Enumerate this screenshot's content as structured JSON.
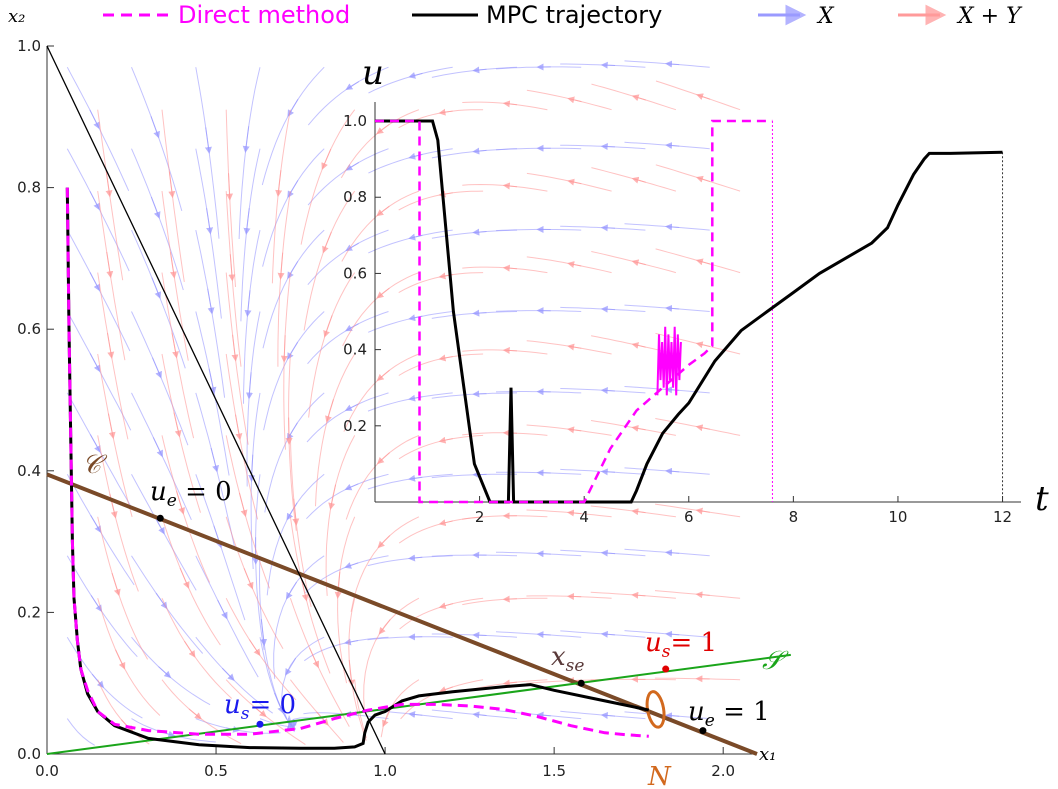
{
  "chart_data": [
    {
      "type": "line",
      "xlabel": "x₁",
      "ylabel": "x₂",
      "xlim": [
        0,
        2.1
      ],
      "ylim": [
        0,
        1.0
      ],
      "xticks": [
        "0.0",
        "0.5",
        "1.0",
        "1.5",
        "2.0"
      ],
      "yticks": [
        "0.0",
        "0.2",
        "0.4",
        "0.6",
        "0.8",
        "1.0"
      ],
      "legend": {
        "placement": "top",
        "entries": [
          {
            "label": "Direct method",
            "color": "#ff00ff",
            "style": "dashed"
          },
          {
            "label": "MPC trajectory",
            "color": "#000000",
            "style": "solid"
          },
          {
            "label": "X",
            "color": "#8f8fff",
            "style": "arrow"
          },
          {
            "label": "X + Y",
            "color": "#ff9f9f",
            "style": "arrow"
          }
        ]
      },
      "series": [
        {
          "name": "MPC trajectory",
          "color": "#000000",
          "x": [
            0.06,
            0.065,
            0.07,
            0.075,
            0.08,
            0.09,
            0.1,
            0.12,
            0.15,
            0.2,
            0.3,
            0.45,
            0.6,
            0.75,
            0.85,
            0.91,
            0.935,
            0.94,
            0.95,
            0.97,
            1.0,
            1.05,
            1.1,
            1.2,
            1.35,
            1.43,
            1.5,
            1.6,
            1.7,
            1.78
          ],
          "y": [
            0.8,
            0.6,
            0.45,
            0.3,
            0.22,
            0.16,
            0.12,
            0.085,
            0.06,
            0.04,
            0.022,
            0.013,
            0.009,
            0.008,
            0.008,
            0.01,
            0.015,
            0.03,
            0.045,
            0.055,
            0.06,
            0.075,
            0.082,
            0.088,
            0.095,
            0.098,
            0.09,
            0.08,
            0.07,
            0.062
          ]
        },
        {
          "name": "Direct method",
          "color": "#ff00ff",
          "x": [
            0.06,
            0.065,
            0.07,
            0.075,
            0.08,
            0.09,
            0.1,
            0.12,
            0.15,
            0.2,
            0.3,
            0.45,
            0.6,
            0.75,
            0.85,
            0.95,
            1.05,
            1.15,
            1.25,
            1.35,
            1.45,
            1.55,
            1.65,
            1.72,
            1.78
          ],
          "y": [
            0.8,
            0.6,
            0.45,
            0.3,
            0.22,
            0.16,
            0.12,
            0.09,
            0.06,
            0.042,
            0.033,
            0.028,
            0.028,
            0.036,
            0.05,
            0.062,
            0.07,
            0.07,
            0.068,
            0.063,
            0.053,
            0.04,
            0.03,
            0.027,
            0.025
          ]
        }
      ],
      "lines": [
        {
          "name": "C",
          "color": "#7a4a28",
          "x": [
            0,
            2.1
          ],
          "y": [
            0.395,
            0.0
          ]
        },
        {
          "name": "S",
          "color": "#1aa51a",
          "x": [
            0,
            2.2
          ],
          "y": [
            0.0,
            0.14
          ]
        },
        {
          "name": "boundary",
          "color": "#000000",
          "x": [
            0,
            1.0
          ],
          "y": [
            1.0,
            0.0
          ]
        }
      ],
      "points": [
        {
          "label": "u_e = 0",
          "x": 0.335,
          "y": 0.333,
          "color": "#000000"
        },
        {
          "label": "x_se",
          "x": 1.58,
          "y": 0.1,
          "color": "#000000"
        },
        {
          "label": "u_s = 1",
          "x": 1.83,
          "y": 0.12,
          "color": "#e00000"
        },
        {
          "label": "u_s = 0",
          "x": 0.63,
          "y": 0.042,
          "color": "#1a1aee"
        },
        {
          "label": "u_e = 1",
          "x": 1.94,
          "y": 0.033,
          "color": "#000000"
        }
      ],
      "annotations": {
        "C": "𝒞",
        "S": "𝒮",
        "N": "N",
        "u_e0": "u",
        "u_e0_sub": "e",
        "u_e0_rest": " = 0",
        "u_e1_rest": " = 1",
        "u_s0_rest": "= 0",
        "u_s1_rest": "= 1",
        "u_s_sub": "s",
        "x_se": "x",
        "x_se_sub": "se"
      }
    },
    {
      "type": "line",
      "xlabel": "t",
      "ylabel": "u",
      "xlim": [
        0,
        12.2
      ],
      "ylim": [
        0,
        1.05
      ],
      "xticks": [
        "2",
        "4",
        "6",
        "8",
        "10",
        "12"
      ],
      "yticks": [
        "0.2",
        "0.4",
        "0.6",
        "0.8",
        "1.0"
      ],
      "series": [
        {
          "name": "MPC trajectory",
          "color": "#000000",
          "t": [
            0,
            1.1,
            1.2,
            1.3,
            1.5,
            1.7,
            1.9,
            2.2,
            2.55,
            2.6,
            2.65,
            2.7,
            3.0,
            4.0,
            4.9,
            5.0,
            5.2,
            5.5,
            5.8,
            6.0,
            6.5,
            7.0,
            7.5,
            8.0,
            8.5,
            9.0,
            9.5,
            9.8,
            10.0,
            10.3,
            10.5,
            10.6,
            11.0,
            12.0
          ],
          "u": [
            1.0,
            1.0,
            0.95,
            0.8,
            0.5,
            0.3,
            0.1,
            0.0,
            0.0,
            0.3,
            0.0,
            0.0,
            0.0,
            0.0,
            0.0,
            0.03,
            0.1,
            0.18,
            0.23,
            0.26,
            0.37,
            0.45,
            0.5,
            0.55,
            0.6,
            0.64,
            0.68,
            0.72,
            0.78,
            0.86,
            0.9,
            0.915,
            0.915,
            0.918
          ]
        },
        {
          "name": "Direct method",
          "color": "#ff00ff",
          "t": [
            0,
            0.85,
            0.85,
            4.0,
            4.5,
            5.0,
            5.5,
            6.0,
            6.3,
            6.45,
            6.45,
            7.6
          ],
          "u": [
            1.0,
            1.0,
            0.0,
            0.0,
            0.14,
            0.24,
            0.3,
            0.36,
            0.39,
            0.41,
            1.0,
            1.0
          ]
        }
      ]
    }
  ]
}
